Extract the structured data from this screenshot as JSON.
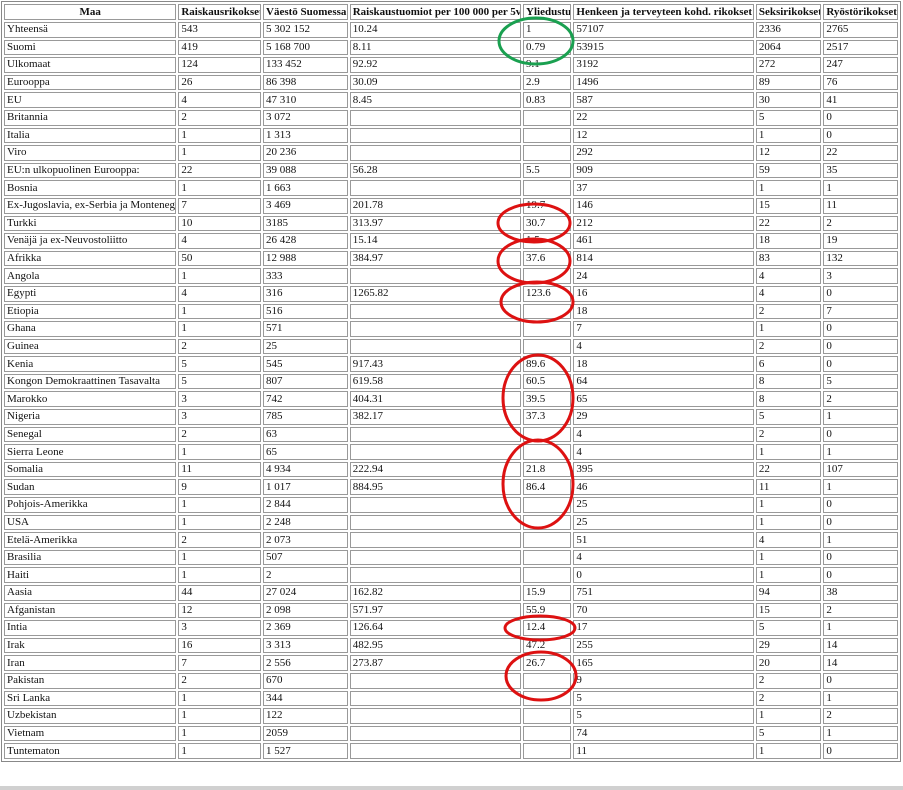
{
  "columns": [
    "Maa",
    "Raiskausrikokset",
    "Väestö Suomessa",
    "Raiskaustuomiot per 100 000 per 5v",
    "Yliedustus",
    "Henkeen ja terveyteen kohd. rikokset",
    "Seksirikokset",
    "Ryöstörikokset"
  ],
  "rows": [
    [
      "Yhteensä",
      "543",
      "5 302 152",
      "10.24",
      "1",
      "57107",
      "2336",
      "2765"
    ],
    [
      "Suomi",
      "419",
      "5 168 700",
      "8.11",
      "0.79",
      "53915",
      "2064",
      "2517"
    ],
    [
      "Ulkomaat",
      "124",
      "133 452",
      "92.92",
      "9.1",
      "3192",
      "272",
      "247"
    ],
    [
      "Eurooppa",
      "26",
      "86 398",
      "30.09",
      "2.9",
      "1496",
      "89",
      "76"
    ],
    [
      "EU",
      "4",
      "47 310",
      "8.45",
      "0.83",
      "587",
      "30",
      "41"
    ],
    [
      "Britannia",
      "2",
      "3 072",
      "",
      "",
      "22",
      "5",
      "0"
    ],
    [
      "Italia",
      "1",
      "1 313",
      "",
      "",
      "12",
      "1",
      "0"
    ],
    [
      "Viro",
      "1",
      "20 236",
      "",
      "",
      "292",
      "12",
      "22"
    ],
    [
      "EU:n ulkopuolinen Eurooppa:",
      "22",
      "39 088",
      "56.28",
      "5.5",
      "909",
      "59",
      "35"
    ],
    [
      "Bosnia",
      "1",
      "1 663",
      "",
      "",
      "37",
      "1",
      "1"
    ],
    [
      "Ex-Jugoslavia, ex-Serbia ja Montenegro",
      "7",
      "3 469",
      "201.78",
      "19.7",
      "146",
      "15",
      "11"
    ],
    [
      "Turkki",
      "10",
      "3185",
      "313.97",
      "30.7",
      "212",
      "22",
      "2"
    ],
    [
      "Venäjä ja ex-Neuvostoliitto",
      "4",
      "26 428",
      "15.14",
      "1.5",
      "461",
      "18",
      "19"
    ],
    [
      "Afrikka",
      "50",
      "12 988",
      "384.97",
      "37.6",
      "814",
      "83",
      "132"
    ],
    [
      "Angola",
      "1",
      "333",
      "",
      "",
      "24",
      "4",
      "3"
    ],
    [
      "Egypti",
      "4",
      "316",
      "1265.82",
      "123.6",
      "16",
      "4",
      "0"
    ],
    [
      "Etiopia",
      "1",
      "516",
      "",
      "",
      "18",
      "2",
      "7"
    ],
    [
      "Ghana",
      "1",
      "571",
      "",
      "",
      "7",
      "1",
      "0"
    ],
    [
      "Guinea",
      "2",
      "25",
      "",
      "",
      "4",
      "2",
      "0"
    ],
    [
      "Kenia",
      "5",
      "545",
      "917.43",
      "89.6",
      "18",
      "6",
      "0"
    ],
    [
      "Kongon Demokraattinen Tasavalta",
      "5",
      "807",
      "619.58",
      "60.5",
      "64",
      "8",
      "5"
    ],
    [
      "Marokko",
      "3",
      "742",
      "404.31",
      "39.5",
      "65",
      "8",
      "2"
    ],
    [
      "Nigeria",
      "3",
      "785",
      "382.17",
      "37.3",
      "29",
      "5",
      "1"
    ],
    [
      "Senegal",
      "2",
      "63",
      "",
      "",
      "4",
      "2",
      "0"
    ],
    [
      "Sierra Leone",
      "1",
      "65",
      "",
      "",
      "4",
      "1",
      "1"
    ],
    [
      "Somalia",
      "11",
      "4 934",
      "222.94",
      "21.8",
      "395",
      "22",
      "107"
    ],
    [
      "Sudan",
      "9",
      "1 017",
      "884.95",
      "86.4",
      "46",
      "11",
      "1"
    ],
    [
      "Pohjois-Amerikka",
      "1",
      "2 844",
      "",
      "",
      "25",
      "1",
      "0"
    ],
    [
      "USA",
      "1",
      "2 248",
      "",
      "",
      "25",
      "1",
      "0"
    ],
    [
      "Etelä-Amerikka",
      "2",
      "2 073",
      "",
      "",
      "51",
      "4",
      "1"
    ],
    [
      "Brasilia",
      "1",
      "507",
      "",
      "",
      "4",
      "1",
      "0"
    ],
    [
      "Haiti",
      "1",
      "2",
      "",
      "",
      "0",
      "1",
      "0"
    ],
    [
      "Aasia",
      "44",
      "27 024",
      "162.82",
      "15.9",
      "751",
      "94",
      "38"
    ],
    [
      "Afganistan",
      "12",
      "2 098",
      "571.97",
      "55.9",
      "70",
      "15",
      "2"
    ],
    [
      "Intia",
      "3",
      "2 369",
      "126.64",
      "12.4",
      "17",
      "5",
      "1"
    ],
    [
      "Irak",
      "16",
      "3 313",
      "482.95",
      "47.2",
      "255",
      "29",
      "14"
    ],
    [
      "Iran",
      "7",
      "2 556",
      "273.87",
      "26.7",
      "165",
      "20",
      "14"
    ],
    [
      "Pakistan",
      "2",
      "670",
      "",
      "",
      "9",
      "2",
      "0"
    ],
    [
      "Sri Lanka",
      "1",
      "344",
      "",
      "",
      "5",
      "2",
      "1"
    ],
    [
      "Uzbekistan",
      "1",
      "122",
      "",
      "",
      "5",
      "1",
      "2"
    ],
    [
      "Vietnam",
      "1",
      "2059",
      "",
      "",
      "74",
      "5",
      "1"
    ],
    [
      "Tuntematon",
      "1",
      "1 527",
      "",
      "",
      "11",
      "1",
      "0"
    ]
  ],
  "annotations": {
    "green_color": "#1aa050",
    "red_color": "#dd1111",
    "green_circle_rows": [
      "Yhteensä",
      "Suomi"
    ],
    "red_circle_groups": [
      [
        "Ex-Jugoslavia, ex-Serbia ja Montenegro",
        "Turkki"
      ],
      [
        "Venäjä ja ex-Neuvostoliitto",
        "Afrikka"
      ],
      [
        "Egypti"
      ],
      [
        "Kenia",
        "Kongon Demokraattinen Tasavalta",
        "Marokko",
        "Nigeria"
      ],
      [
        "Senegal",
        "Sierra Leone",
        "Somalia",
        "Sudan"
      ],
      [
        "Afganistan"
      ],
      [
        "Irak",
        "Iran"
      ]
    ]
  }
}
